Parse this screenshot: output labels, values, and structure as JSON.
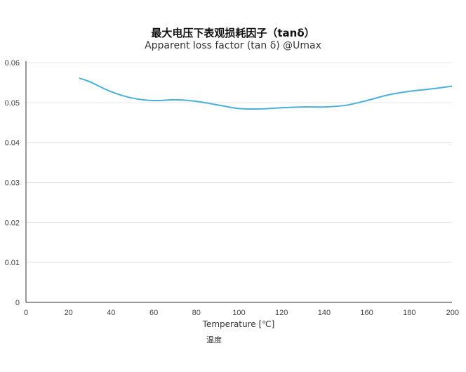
{
  "chart_data": {
    "type": "line",
    "title": "最大电压下表观损耗因子（tanδ）",
    "subtitle": "Apparent loss factor (tan δ) @Umax",
    "xlabel": "Temperature [℃]",
    "xlabel_secondary": "温度",
    "ylabel": "",
    "xlim": [
      0,
      200
    ],
    "ylim": [
      0,
      0.06
    ],
    "x_ticks": [
      "0",
      "20",
      "40",
      "60",
      "80",
      "100",
      "120",
      "140",
      "160",
      "180",
      "200"
    ],
    "y_ticks": [
      "0",
      "0.01",
      "0.02",
      "0.03",
      "0.04",
      "0.05",
      "0.06"
    ],
    "grid": "horizontal",
    "series": [
      {
        "color": "#4ab0d9",
        "x": [
          25,
          30,
          40,
          50,
          60,
          70,
          80,
          90,
          100,
          110,
          120,
          130,
          140,
          150,
          160,
          170,
          180,
          190,
          200
        ],
        "y": [
          0.0561,
          0.0552,
          0.0527,
          0.0511,
          0.0505,
          0.0507,
          0.0503,
          0.0494,
          0.0485,
          0.0484,
          0.0487,
          0.0489,
          0.0489,
          0.0493,
          0.0505,
          0.0519,
          0.0528,
          0.0534,
          0.0541
        ]
      }
    ]
  }
}
